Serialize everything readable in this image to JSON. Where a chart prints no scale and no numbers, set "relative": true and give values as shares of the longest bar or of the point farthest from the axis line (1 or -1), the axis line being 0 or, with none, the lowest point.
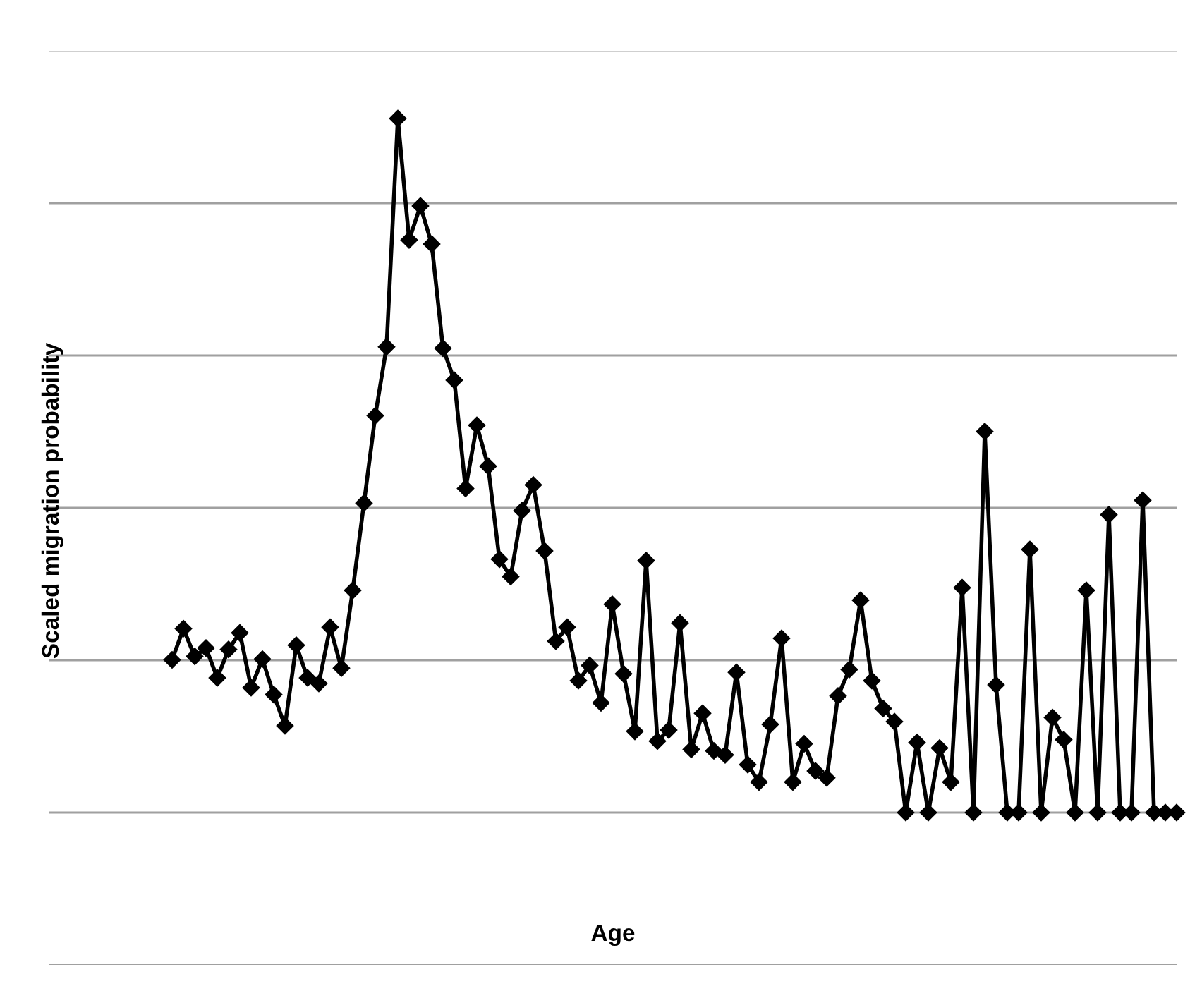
{
  "chart_data": {
    "type": "line",
    "xlabel": "Age",
    "ylabel": "Scaled migration probability",
    "relative": true,
    "grid": "y",
    "marker": "diamond",
    "line_style": "solid",
    "categories": [
      null,
      null,
      null,
      null,
      null,
      null,
      null,
      null,
      null,
      null,
      null,
      null,
      null,
      null,
      null,
      null,
      null,
      null,
      null,
      null,
      null,
      null,
      null,
      null,
      null,
      null,
      null,
      null,
      null,
      null,
      null,
      null,
      null,
      null,
      null,
      null,
      null,
      null,
      null,
      null,
      null,
      null,
      null,
      null,
      null,
      null,
      null,
      null,
      null,
      null,
      null,
      null,
      null,
      null,
      null,
      null,
      null,
      null,
      null,
      null,
      null,
      null,
      null,
      null,
      null,
      null,
      null,
      null,
      null,
      null,
      null,
      null,
      null,
      null,
      null,
      null,
      null,
      null,
      null,
      null,
      null,
      null,
      null,
      null,
      null,
      null,
      null,
      null,
      null,
      null
    ],
    "series": [
      {
        "color": "#000000",
        "values": [
          0.22,
          0.265,
          0.225,
          0.237,
          0.194,
          0.235,
          0.259,
          0.18,
          0.221,
          0.17,
          0.125,
          0.241,
          0.194,
          0.186,
          0.267,
          0.208,
          0.32,
          0.446,
          0.572,
          0.671,
          1,
          0.825,
          0.874,
          0.819,
          0.669,
          0.623,
          0.467,
          0.558,
          0.499,
          0.365,
          0.34,
          0.435,
          0.472,
          0.377,
          0.247,
          0.267,
          0.19,
          0.212,
          0.158,
          0.3,
          0.2,
          0.117,
          0.363,
          0.103,
          0.119,
          0.273,
          0.091,
          0.143,
          0.089,
          0.083,
          0.202,
          0.069,
          0.044,
          0.127,
          0.251,
          0.044,
          0.099,
          0.06,
          0.05,
          0.168,
          0.206,
          0.306,
          0.19,
          0.15,
          0.131,
          0,
          0.101,
          0,
          0.093,
          0.044,
          0.324,
          0,
          0.549,
          0.184,
          0,
          0,
          0.379,
          0,
          0.137,
          0.105,
          0,
          0.32,
          0,
          0.429,
          0,
          0,
          0.45,
          0,
          0,
          0
        ]
      }
    ]
  }
}
